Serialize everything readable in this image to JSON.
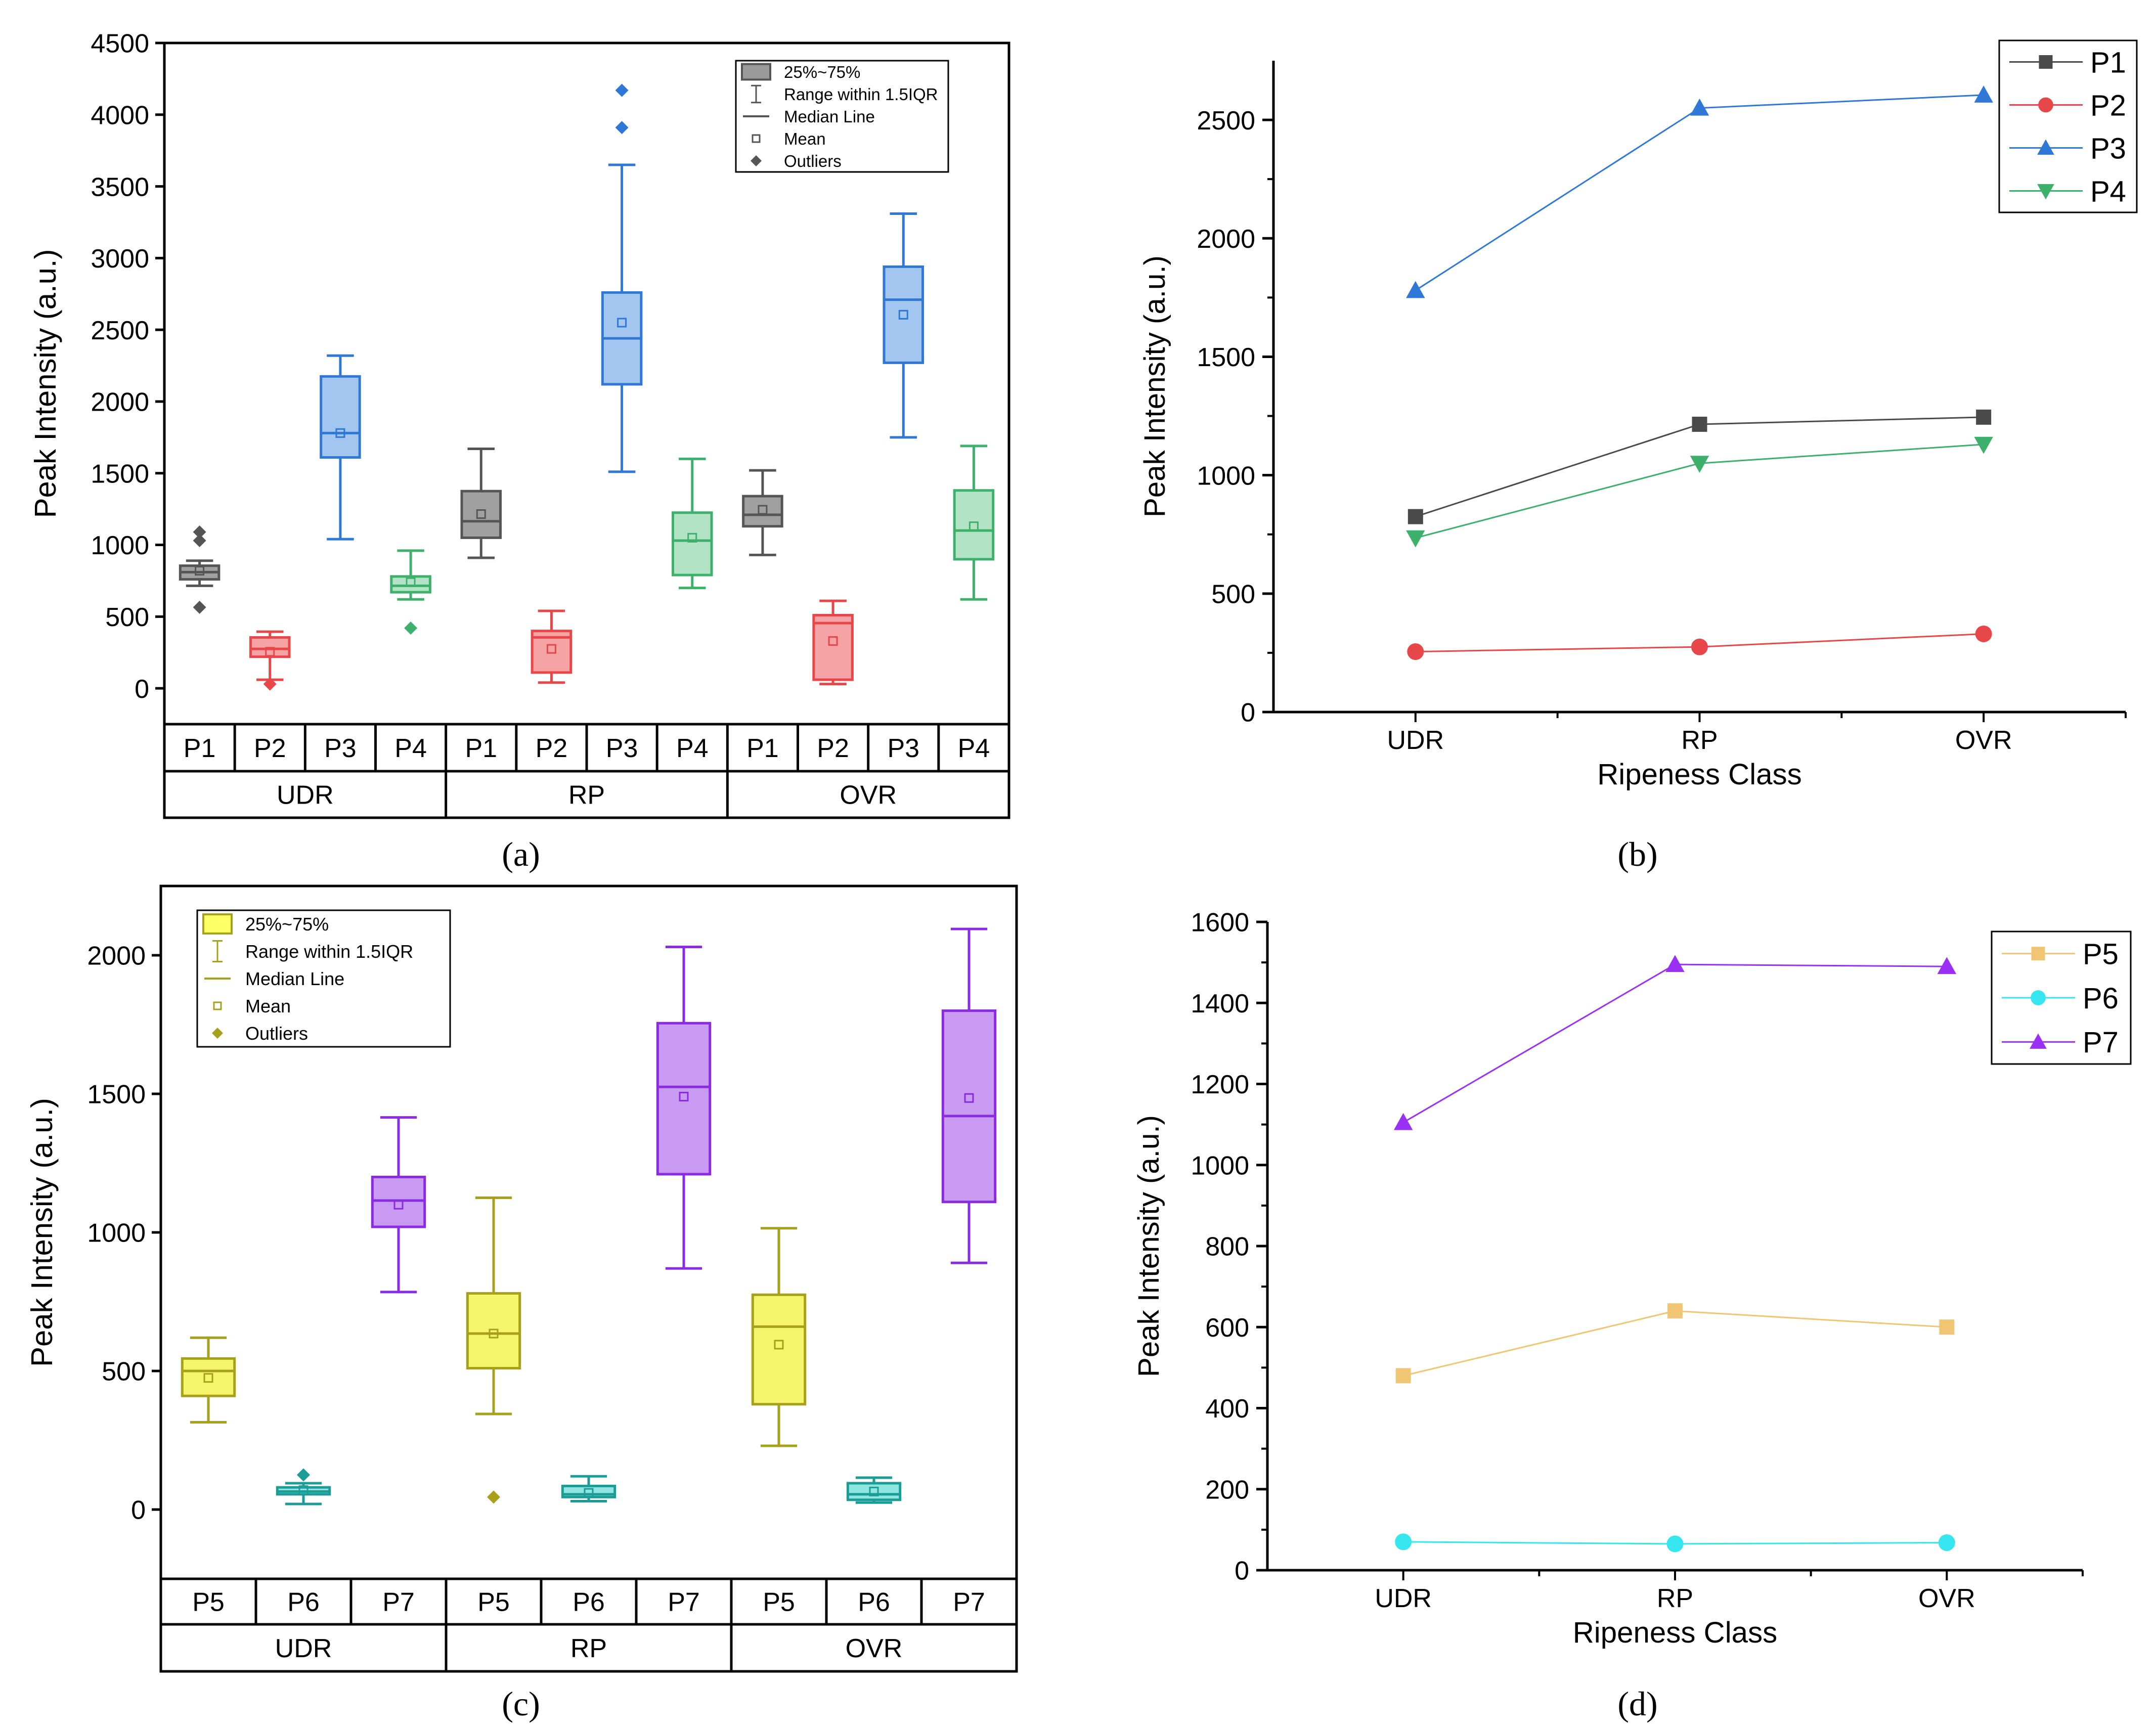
{
  "captions": {
    "a": "(a)",
    "b": "(b)",
    "c": "(c)",
    "d": "(d)"
  },
  "chart_data": [
    {
      "id": "a",
      "type": "box",
      "ylabel": "Peak Intensity (a.u.)",
      "ylim": [
        -250,
        4500
      ],
      "yticks": [
        0,
        500,
        1000,
        1500,
        2000,
        2500,
        3000,
        3500,
        4000,
        4500
      ],
      "groups": [
        "UDR",
        "RP",
        "OVR"
      ],
      "categories": [
        "P1",
        "P2",
        "P3",
        "P4"
      ],
      "legend": {
        "position": "top-right",
        "entries": [
          "25%~75%",
          "Range within 1.5IQR",
          "Median Line",
          "Mean",
          "Outliers"
        ],
        "color": "#555555",
        "fill": "#9a9a9a"
      },
      "series_colors": {
        "P1": {
          "stroke": "#555555",
          "fill": "#a0a0a0"
        },
        "P2": {
          "stroke": "#e8474a",
          "fill": "#f5a3a4"
        },
        "P3": {
          "stroke": "#2f78d6",
          "fill": "#a3c6f0"
        },
        "P4": {
          "stroke": "#3db06b",
          "fill": "#b3e3c5"
        }
      },
      "boxes": [
        {
          "group": "UDR",
          "name": "P1",
          "whislo": 715,
          "q1": 760,
          "med": 810,
          "q3": 855,
          "whishi": 890,
          "mean": 820,
          "outliers": [
            565,
            1030,
            1090
          ]
        },
        {
          "group": "UDR",
          "name": "P2",
          "whislo": 60,
          "q1": 220,
          "med": 275,
          "q3": 355,
          "whishi": 395,
          "mean": 255,
          "outliers": [
            30
          ]
        },
        {
          "group": "UDR",
          "name": "P3",
          "whislo": 1040,
          "q1": 1610,
          "med": 1780,
          "q3": 2175,
          "whishi": 2320,
          "mean": 1780,
          "outliers": []
        },
        {
          "group": "UDR",
          "name": "P4",
          "whislo": 620,
          "q1": 670,
          "med": 715,
          "q3": 780,
          "whishi": 960,
          "mean": 740,
          "outliers": [
            420
          ]
        },
        {
          "group": "RP",
          "name": "P1",
          "whislo": 910,
          "q1": 1050,
          "med": 1165,
          "q3": 1375,
          "whishi": 1670,
          "mean": 1215,
          "outliers": []
        },
        {
          "group": "RP",
          "name": "P2",
          "whislo": 40,
          "q1": 110,
          "med": 355,
          "q3": 400,
          "whishi": 540,
          "mean": 275,
          "outliers": []
        },
        {
          "group": "RP",
          "name": "P3",
          "whislo": 1510,
          "q1": 2120,
          "med": 2440,
          "q3": 2760,
          "whishi": 3650,
          "mean": 2550,
          "outliers": [
            3910,
            4170
          ]
        },
        {
          "group": "RP",
          "name": "P4",
          "whislo": 700,
          "q1": 790,
          "med": 1030,
          "q3": 1225,
          "whishi": 1600,
          "mean": 1050,
          "outliers": []
        },
        {
          "group": "OVR",
          "name": "P1",
          "whislo": 930,
          "q1": 1130,
          "med": 1210,
          "q3": 1340,
          "whishi": 1520,
          "mean": 1245,
          "outliers": []
        },
        {
          "group": "OVR",
          "name": "P2",
          "whislo": 30,
          "q1": 60,
          "med": 455,
          "q3": 510,
          "whishi": 610,
          "mean": 330,
          "outliers": []
        },
        {
          "group": "OVR",
          "name": "P3",
          "whislo": 1750,
          "q1": 2270,
          "med": 2710,
          "q3": 2940,
          "whishi": 3310,
          "mean": 2605,
          "outliers": []
        },
        {
          "group": "OVR",
          "name": "P4",
          "whislo": 620,
          "q1": 900,
          "med": 1100,
          "q3": 1380,
          "whishi": 1690,
          "mean": 1130,
          "outliers": []
        }
      ]
    },
    {
      "id": "b",
      "type": "line",
      "xlabel": "Ripeness Class",
      "ylabel": "Peak Intensity (a.u.)",
      "categories": [
        "UDR",
        "RP",
        "OVR"
      ],
      "ylim": [
        0,
        2750
      ],
      "yticks": [
        0,
        500,
        1000,
        1500,
        2000,
        2500
      ],
      "legend_position": "top-right",
      "series": [
        {
          "name": "P1",
          "values": [
            825,
            1215,
            1245
          ],
          "color": "#4a4a4a",
          "marker": "square"
        },
        {
          "name": "P2",
          "values": [
            255,
            275,
            330
          ],
          "color": "#e8474a",
          "marker": "circle"
        },
        {
          "name": "P3",
          "values": [
            1780,
            2550,
            2605
          ],
          "color": "#2f78d6",
          "marker": "triangle-up"
        },
        {
          "name": "P4",
          "values": [
            735,
            1050,
            1130
          ],
          "color": "#3db06b",
          "marker": "triangle-down"
        }
      ]
    },
    {
      "id": "c",
      "type": "box",
      "ylabel": "Peak Intensity (a.u.)",
      "ylim": [
        -250,
        2250
      ],
      "yticks": [
        0,
        500,
        1000,
        1500,
        2000
      ],
      "groups": [
        "UDR",
        "RP",
        "OVR"
      ],
      "categories": [
        "P5",
        "P6",
        "P7"
      ],
      "legend": {
        "position": "top-left",
        "entries": [
          "25%~75%",
          "Range within 1.5IQR",
          "Median Line",
          "Mean",
          "Outliers"
        ],
        "color": "#a6a01a",
        "fill": "#ffff66"
      },
      "series_colors": {
        "P5": {
          "stroke": "#a6a01a",
          "fill": "#f6f46a"
        },
        "P6": {
          "stroke": "#1c9c96",
          "fill": "#8fe6e0"
        },
        "P7": {
          "stroke": "#8a2be2",
          "fill": "#c99af2"
        }
      },
      "boxes": [
        {
          "group": "UDR",
          "name": "P5",
          "whislo": 315,
          "q1": 410,
          "med": 500,
          "q3": 545,
          "whishi": 620,
          "mean": 475,
          "outliers": []
        },
        {
          "group": "UDR",
          "name": "P6",
          "whislo": 20,
          "q1": 55,
          "med": 65,
          "q3": 80,
          "whishi": 95,
          "mean": 70,
          "outliers": [
            125
          ]
        },
        {
          "group": "UDR",
          "name": "P7",
          "whislo": 785,
          "q1": 1020,
          "med": 1115,
          "q3": 1200,
          "whishi": 1415,
          "mean": 1100,
          "outliers": []
        },
        {
          "group": "RP",
          "name": "P5",
          "whislo": 345,
          "q1": 510,
          "med": 635,
          "q3": 780,
          "whishi": 1125,
          "mean": 635,
          "outliers": [
            45
          ]
        },
        {
          "group": "RP",
          "name": "P6",
          "whislo": 30,
          "q1": 45,
          "med": 55,
          "q3": 85,
          "whishi": 120,
          "mean": 60,
          "outliers": []
        },
        {
          "group": "RP",
          "name": "P7",
          "whislo": 870,
          "q1": 1210,
          "med": 1525,
          "q3": 1755,
          "whishi": 2030,
          "mean": 1490,
          "outliers": []
        },
        {
          "group": "OVR",
          "name": "P5",
          "whislo": 230,
          "q1": 380,
          "med": 660,
          "q3": 775,
          "whishi": 1015,
          "mean": 595,
          "outliers": []
        },
        {
          "group": "OVR",
          "name": "P6",
          "whislo": 25,
          "q1": 35,
          "med": 55,
          "q3": 95,
          "whishi": 115,
          "mean": 65,
          "outliers": []
        },
        {
          "group": "OVR",
          "name": "P7",
          "whislo": 890,
          "q1": 1110,
          "med": 1420,
          "q3": 1800,
          "whishi": 2095,
          "mean": 1485,
          "outliers": []
        }
      ]
    },
    {
      "id": "d",
      "type": "line",
      "xlabel": "Ripeness Class",
      "ylabel": "Peak Intensity (a.u.)",
      "categories": [
        "UDR",
        "RP",
        "OVR"
      ],
      "ylim": [
        0,
        1600
      ],
      "yticks": [
        0,
        200,
        400,
        600,
        800,
        1000,
        1200,
        1400,
        1600
      ],
      "legend_position": "top-right",
      "series": [
        {
          "name": "P5",
          "values": [
            480,
            640,
            600
          ],
          "color": "#f0c674",
          "marker": "square"
        },
        {
          "name": "P6",
          "values": [
            70,
            65,
            68
          ],
          "color": "#35e6ee",
          "marker": "circle"
        },
        {
          "name": "P7",
          "values": [
            1105,
            1495,
            1490
          ],
          "color": "#9b30f5",
          "marker": "triangle-up"
        }
      ]
    }
  ]
}
